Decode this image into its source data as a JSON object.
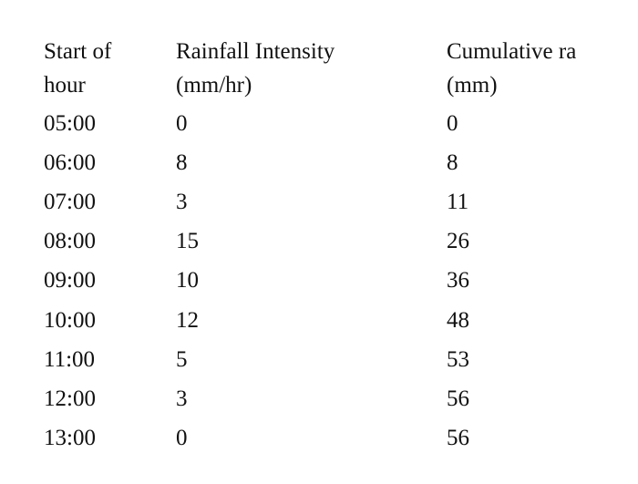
{
  "table": {
    "header": [
      [
        "Start of",
        "hour"
      ],
      [
        "Rainfall Intensity",
        "(mm/hr)"
      ],
      [
        "Cumulative ra",
        "(mm)"
      ]
    ],
    "rows": [
      [
        "05:00",
        0,
        0
      ],
      [
        "06:00",
        8,
        8
      ],
      [
        "07:00",
        3,
        11
      ],
      [
        "08:00",
        15,
        26
      ],
      [
        "09:00",
        10,
        36
      ],
      [
        "10:00",
        12,
        48
      ],
      [
        "11:00",
        5,
        53
      ],
      [
        "12:00",
        3,
        56
      ],
      [
        "13:00",
        0,
        56
      ]
    ]
  }
}
